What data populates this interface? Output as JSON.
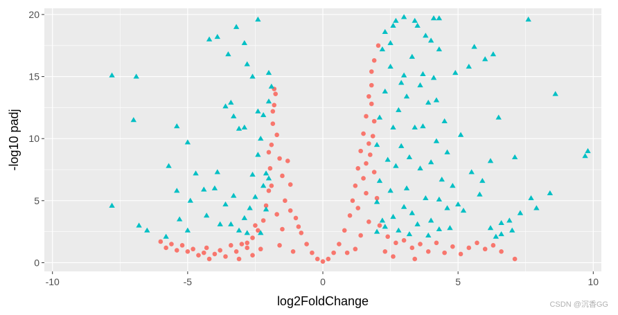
{
  "chart_data": {
    "type": "scatter",
    "title": "",
    "xlabel": "log2FoldChange",
    "ylabel": "-log10 padj",
    "xlim": [
      -10.3,
      10.3
    ],
    "ylim": [
      -0.7,
      20.5
    ],
    "x_ticks": [
      -10,
      -5,
      0,
      5,
      10
    ],
    "x_tick_labels": [
      "-10",
      "-5",
      "0",
      "5",
      "10"
    ],
    "y_ticks": [
      0,
      5,
      10,
      15,
      20
    ],
    "y_tick_labels": [
      "0",
      "5",
      "10",
      "15",
      "20"
    ],
    "grid": true,
    "legend": "none",
    "colors": {
      "not_significant": "#F8766D",
      "significant": "#00BFC4",
      "panel": "#EBEBEB",
      "gridline": "#FFFFFF"
    },
    "series": [
      {
        "marker": "circle",
        "color": "#F8766D",
        "points": [
          [
            -6.0,
            1.7
          ],
          [
            -5.8,
            1.2
          ],
          [
            -5.6,
            1.5
          ],
          [
            -5.4,
            1.0
          ],
          [
            -5.2,
            1.4
          ],
          [
            -5.0,
            0.9
          ],
          [
            -4.8,
            1.1
          ],
          [
            -4.6,
            0.6
          ],
          [
            -4.4,
            0.8
          ],
          [
            -4.2,
            0.3
          ],
          [
            -4.3,
            1.2
          ],
          [
            -4.0,
            0.7
          ],
          [
            -3.8,
            1.0
          ],
          [
            -3.6,
            0.5
          ],
          [
            -3.4,
            1.4
          ],
          [
            -3.2,
            0.9
          ],
          [
            -3.0,
            1.5
          ],
          [
            -2.8,
            1.2
          ],
          [
            -2.6,
            2.0
          ],
          [
            -2.4,
            2.6
          ],
          [
            -2.2,
            3.4
          ],
          [
            -2.1,
            4.6
          ],
          [
            -2.0,
            5.8
          ],
          [
            -1.95,
            7.6
          ],
          [
            -1.9,
            9.5
          ],
          [
            -1.85,
            11.2
          ],
          [
            -1.8,
            12.7
          ],
          [
            -1.75,
            13.6
          ],
          [
            -1.8,
            14.0
          ],
          [
            -1.85,
            12.2
          ],
          [
            -1.7,
            10.3
          ],
          [
            -1.6,
            8.4
          ],
          [
            -1.5,
            7.0
          ],
          [
            -1.3,
            8.2
          ],
          [
            -1.2,
            6.3
          ],
          [
            -1.4,
            5.0
          ],
          [
            -1.2,
            4.2
          ],
          [
            -1.0,
            3.6
          ],
          [
            -0.8,
            2.4
          ],
          [
            -0.6,
            1.5
          ],
          [
            -0.4,
            0.8
          ],
          [
            -0.2,
            0.3
          ],
          [
            0.0,
            0.1
          ],
          [
            0.2,
            0.3
          ],
          [
            0.4,
            0.8
          ],
          [
            0.6,
            1.5
          ],
          [
            0.8,
            2.6
          ],
          [
            1.0,
            3.8
          ],
          [
            1.1,
            5.0
          ],
          [
            1.2,
            6.2
          ],
          [
            1.3,
            7.6
          ],
          [
            1.4,
            9.0
          ],
          [
            1.5,
            10.4
          ],
          [
            1.6,
            11.8
          ],
          [
            1.7,
            13.4
          ],
          [
            1.8,
            14.3
          ],
          [
            1.8,
            15.4
          ],
          [
            1.9,
            16.3
          ],
          [
            2.05,
            17.5
          ],
          [
            1.7,
            9.6
          ],
          [
            1.6,
            8.0
          ],
          [
            1.8,
            12.8
          ],
          [
            1.9,
            11.4
          ],
          [
            1.85,
            10.2
          ],
          [
            1.75,
            8.7
          ],
          [
            1.5,
            6.8
          ],
          [
            1.3,
            4.4
          ],
          [
            1.6,
            5.6
          ],
          [
            1.9,
            7.3
          ],
          [
            2.1,
            3.0
          ],
          [
            2.4,
            2.1
          ],
          [
            2.7,
            1.6
          ],
          [
            3.0,
            1.8
          ],
          [
            3.3,
            1.2
          ],
          [
            3.6,
            1.5
          ],
          [
            3.9,
            0.9
          ],
          [
            4.2,
            1.6
          ],
          [
            4.5,
            0.8
          ],
          [
            4.8,
            1.3
          ],
          [
            5.1,
            0.7
          ],
          [
            5.4,
            1.2
          ],
          [
            5.7,
            1.6
          ],
          [
            6.0,
            1.1
          ],
          [
            6.3,
            1.4
          ],
          [
            6.6,
            0.9
          ],
          [
            7.1,
            0.3
          ],
          [
            -2.8,
            1.6
          ],
          [
            -2.5,
            3.0
          ],
          [
            -2.6,
            0.6
          ],
          [
            -3.1,
            0.3
          ],
          [
            -1.5,
            2.7
          ],
          [
            -1.7,
            3.9
          ],
          [
            -1.9,
            6.2
          ],
          [
            -2.0,
            8.9
          ],
          [
            -1.6,
            1.4
          ],
          [
            -0.9,
            2.9
          ],
          [
            1.4,
            2.2
          ],
          [
            1.7,
            3.3
          ],
          [
            2.0,
            5.2
          ],
          [
            2.3,
            0.9
          ],
          [
            2.6,
            0.5
          ],
          [
            3.4,
            0.3
          ],
          [
            -2.3,
            1.1
          ],
          [
            -1.1,
            0.9
          ],
          [
            0.9,
            0.8
          ],
          [
            1.2,
            1.1
          ]
        ]
      },
      {
        "marker": "triangle",
        "color": "#00BFC4",
        "points": [
          [
            -7.8,
            15.1
          ],
          [
            -6.9,
            15.0
          ],
          [
            -7.0,
            11.5
          ],
          [
            -7.8,
            4.6
          ],
          [
            -6.8,
            3.0
          ],
          [
            -6.5,
            2.6
          ],
          [
            -5.8,
            2.1
          ],
          [
            -5.7,
            7.8
          ],
          [
            -5.4,
            11.0
          ],
          [
            -5.4,
            5.8
          ],
          [
            -5.3,
            3.5
          ],
          [
            -5.0,
            9.7
          ],
          [
            -5.0,
            2.6
          ],
          [
            -4.9,
            5.0
          ],
          [
            -4.7,
            7.2
          ],
          [
            -4.2,
            18.0
          ],
          [
            -3.9,
            18.2
          ],
          [
            -4.4,
            5.9
          ],
          [
            -4.3,
            3.8
          ],
          [
            -4.0,
            6.0
          ],
          [
            -3.5,
            16.8
          ],
          [
            -3.6,
            12.6
          ],
          [
            -3.4,
            12.9
          ],
          [
            -3.3,
            11.8
          ],
          [
            -3.1,
            10.8
          ],
          [
            -2.9,
            10.9
          ],
          [
            -3.2,
            19.0
          ],
          [
            -2.4,
            19.6
          ],
          [
            -2.9,
            17.7
          ],
          [
            -2.8,
            16.0
          ],
          [
            -2.6,
            15.0
          ],
          [
            -2.4,
            12.2
          ],
          [
            -2.0,
            15.3
          ],
          [
            -2.2,
            11.9
          ],
          [
            -1.9,
            14.2
          ],
          [
            -2.0,
            13.0
          ],
          [
            -2.3,
            10.0
          ],
          [
            -2.4,
            8.7
          ],
          [
            -2.1,
            7.2
          ],
          [
            -2.2,
            6.2
          ],
          [
            -2.5,
            5.3
          ],
          [
            -2.7,
            4.4
          ],
          [
            -2.9,
            3.6
          ],
          [
            -3.1,
            2.6
          ],
          [
            -3.6,
            4.7
          ],
          [
            -3.8,
            3.1
          ],
          [
            -3.9,
            7.3
          ],
          [
            -3.3,
            5.4
          ],
          [
            -3.4,
            3.1
          ],
          [
            -2.6,
            7.1
          ],
          [
            -2.3,
            2.4
          ],
          [
            -2.1,
            4.3
          ],
          [
            -2.0,
            6.8
          ],
          [
            -2.8,
            2.4
          ],
          [
            2.0,
            9.5
          ],
          [
            2.2,
            17.2
          ],
          [
            2.3,
            18.6
          ],
          [
            2.5,
            17.7
          ],
          [
            2.6,
            19.1
          ],
          [
            2.7,
            19.5
          ],
          [
            3.0,
            19.8
          ],
          [
            3.4,
            19.5
          ],
          [
            3.5,
            19.1
          ],
          [
            3.8,
            18.3
          ],
          [
            4.1,
            19.7
          ],
          [
            4.3,
            19.7
          ],
          [
            4.0,
            17.9
          ],
          [
            4.3,
            17.2
          ],
          [
            4.9,
            15.3
          ],
          [
            5.4,
            15.8
          ],
          [
            5.6,
            17.4
          ],
          [
            6.0,
            16.4
          ],
          [
            6.3,
            16.8
          ],
          [
            7.6,
            19.6
          ],
          [
            8.6,
            13.6
          ],
          [
            9.8,
            9.0
          ],
          [
            9.7,
            8.6
          ],
          [
            6.5,
            11.7
          ],
          [
            6.2,
            8.2
          ],
          [
            5.9,
            6.6
          ],
          [
            5.8,
            5.5
          ],
          [
            7.1,
            8.5
          ],
          [
            5.5,
            7.3
          ],
          [
            5.1,
            10.3
          ],
          [
            5.0,
            4.7
          ],
          [
            4.6,
            8.9
          ],
          [
            4.8,
            6.2
          ],
          [
            4.5,
            11.4
          ],
          [
            4.2,
            13.1
          ],
          [
            3.9,
            12.9
          ],
          [
            3.7,
            15.2
          ],
          [
            3.3,
            16.6
          ],
          [
            3.1,
            13.4
          ],
          [
            2.9,
            14.5
          ],
          [
            2.6,
            10.9
          ],
          [
            2.3,
            13.8
          ],
          [
            2.1,
            11.7
          ],
          [
            2.4,
            8.3
          ],
          [
            2.1,
            6.6
          ],
          [
            2.0,
            4.9
          ],
          [
            2.2,
            3.4
          ],
          [
            2.5,
            5.8
          ],
          [
            2.7,
            7.8
          ],
          [
            2.9,
            9.4
          ],
          [
            3.1,
            6.0
          ],
          [
            3.3,
            4.0
          ],
          [
            3.4,
            10.9
          ],
          [
            3.6,
            7.6
          ],
          [
            3.8,
            5.2
          ],
          [
            4.0,
            3.4
          ],
          [
            4.2,
            9.8
          ],
          [
            4.4,
            6.7
          ],
          [
            4.6,
            4.4
          ],
          [
            2.0,
            2.5
          ],
          [
            2.3,
            2.9
          ],
          [
            2.8,
            2.6
          ],
          [
            3.2,
            2.3
          ],
          [
            3.5,
            3.1
          ],
          [
            3.9,
            2.2
          ],
          [
            4.3,
            2.7
          ],
          [
            5.2,
            4.2
          ],
          [
            4.7,
            2.8
          ],
          [
            6.2,
            2.8
          ],
          [
            6.6,
            3.2
          ],
          [
            6.9,
            3.4
          ],
          [
            7.3,
            4.0
          ],
          [
            7.7,
            5.2
          ],
          [
            7.9,
            4.4
          ],
          [
            8.4,
            5.6
          ],
          [
            7.0,
            2.6
          ],
          [
            6.6,
            2.3
          ],
          [
            6.4,
            2.1
          ],
          [
            2.5,
            15.8
          ],
          [
            3.0,
            15.1
          ],
          [
            3.6,
            14.3
          ],
          [
            4.1,
            14.9
          ],
          [
            3.7,
            11.0
          ],
          [
            2.8,
            12.3
          ],
          [
            3.2,
            8.5
          ],
          [
            4.0,
            8.1
          ],
          [
            4.3,
            5.1
          ],
          [
            3.0,
            4.5
          ],
          [
            2.6,
            3.7
          ]
        ]
      }
    ]
  },
  "watermark": "CSDN @沉香GG"
}
